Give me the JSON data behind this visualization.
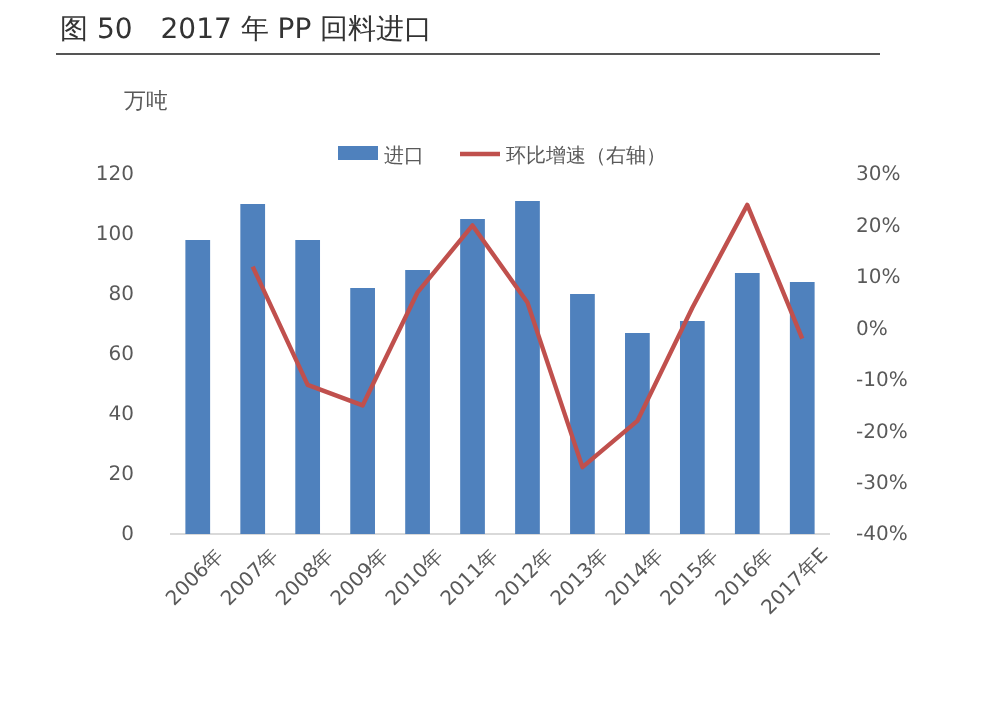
{
  "chart_data": {
    "type": "bar",
    "title": "图 50　2017 年 PP 回料进口",
    "ylabel": "万吨",
    "categories": [
      "2006年",
      "2007年",
      "2008年",
      "2009年",
      "2010年",
      "2011年",
      "2012年",
      "2013年",
      "2014年",
      "2015年",
      "2016年",
      "2017年E"
    ],
    "series": [
      {
        "name": "进口",
        "color": "#4f81bd",
        "values": [
          98,
          110,
          98,
          82,
          88,
          105,
          111,
          80,
          67,
          71,
          87,
          84
        ]
      },
      {
        "name": "环比增速（右轴）",
        "type": "line",
        "axis": "y2",
        "color": "#c0504d",
        "values": [
          null,
          12,
          -11,
          -15,
          7,
          20,
          5,
          -27,
          -18,
          4,
          24,
          -2
        ]
      }
    ],
    "ylim": [
      0,
      120
    ],
    "yticks": [
      0,
      20,
      40,
      60,
      80,
      100,
      120
    ],
    "y2lim": [
      -40,
      30
    ],
    "y2ticks": [
      {
        "value": -40,
        "label": "-40%"
      },
      {
        "value": -30,
        "label": "-30%"
      },
      {
        "value": -20,
        "label": "-20%"
      },
      {
        "value": -10,
        "label": "-10%"
      },
      {
        "value": 0,
        "label": "0%"
      },
      {
        "value": 10,
        "label": "10%"
      },
      {
        "value": 20,
        "label": "20%"
      },
      {
        "value": 30,
        "label": "30%"
      }
    ],
    "legend": "top",
    "grid": false,
    "marker": "none",
    "line_style": "solid"
  }
}
